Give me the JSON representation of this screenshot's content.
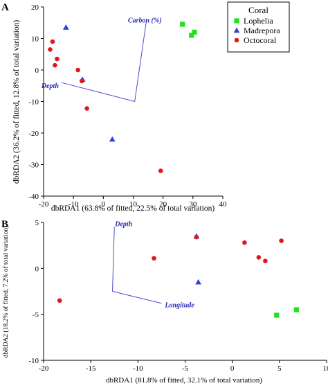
{
  "colors": {
    "Lophelia": "#22e022",
    "Madrepora": "#3340d0",
    "Octocoral": "#e01818",
    "vector": "#4a4ad0"
  },
  "chart_data": [
    {
      "panel": "A",
      "type": "scatter",
      "xlabel": "dbRDA1 (63.8% of fitted, 22.5% of total variation)",
      "ylabel": "dbRDA2 (36.2% of fitted, 12.8% of total variation)",
      "xlim": [
        -20,
        40
      ],
      "ylim": [
        -40,
        20
      ],
      "xticks": [
        "-20",
        "-10",
        "0",
        "10",
        "20",
        "30",
        "40"
      ],
      "yticks": [
        "20",
        "10",
        "0",
        "-10",
        "-20",
        "-30",
        "-40"
      ],
      "legend": {
        "title": "Coral",
        "placement": "top-right",
        "entries": [
          "Lophelia",
          "Madrepora",
          "Octocoral"
        ]
      },
      "series": [
        {
          "name": "Lophelia",
          "marker": "square",
          "points": [
            [
              26.5,
              14.5
            ],
            [
              29.5,
              11
            ],
            [
              30.5,
              12
            ]
          ]
        },
        {
          "name": "Madrepora",
          "marker": "triangle",
          "points": [
            [
              -12.5,
              13.5
            ],
            [
              -7,
              -3
            ],
            [
              3,
              -22
            ]
          ]
        },
        {
          "name": "Octocoral",
          "marker": "circle",
          "points": [
            [
              -17,
              9
            ],
            [
              -17.8,
              6.5
            ],
            [
              -15.5,
              3.5
            ],
            [
              -16.2,
              1.5
            ],
            [
              -8.5,
              0
            ],
            [
              -7.2,
              -3.5
            ],
            [
              -5.5,
              -12.2
            ],
            [
              19.2,
              -32
            ]
          ]
        }
      ],
      "vectors": [
        {
          "label": "Carbon (%)",
          "x": 14.5,
          "y": 16.2
        },
        {
          "label": "Depth",
          "x": -14,
          "y": -4
        }
      ],
      "vector_origin": [
        10.5,
        -10
      ]
    },
    {
      "panel": "B",
      "type": "scatter",
      "xlabel": "dbRDA1 (81.8% of fitted, 32.1% of total variation)",
      "ylabel": "dbRDA2 (18.2% of fitted, 7.2% of total variation)",
      "xlim": [
        -20,
        10
      ],
      "ylim": [
        -10,
        5
      ],
      "xticks": [
        "-20",
        "-15",
        "-10",
        "-5",
        "0",
        "5",
        "10"
      ],
      "yticks": [
        "5",
        "0",
        "-5",
        "-10"
      ],
      "series": [
        {
          "name": "Lophelia",
          "marker": "square",
          "points": [
            [
              4.7,
              -5.1
            ],
            [
              6.8,
              -4.5
            ]
          ]
        },
        {
          "name": "Madrepora",
          "marker": "triangle",
          "points": [
            [
              -3.8,
              3.5
            ],
            [
              -3.6,
              -1.5
            ]
          ]
        },
        {
          "name": "Octocoral",
          "marker": "circle",
          "points": [
            [
              -18.3,
              -3.5
            ],
            [
              -8.3,
              1.1
            ],
            [
              -3.8,
              3.4
            ],
            [
              1.3,
              2.8
            ],
            [
              2.8,
              1.2
            ],
            [
              3.5,
              0.8
            ],
            [
              5.2,
              3.0
            ]
          ]
        }
      ],
      "vectors": [
        {
          "label": "Depth",
          "x": -12.5,
          "y": 4.5
        },
        {
          "label": "Longitude",
          "x": -7.5,
          "y": -3.8
        }
      ],
      "vector_origin": [
        -12.7,
        -2.5
      ]
    }
  ]
}
